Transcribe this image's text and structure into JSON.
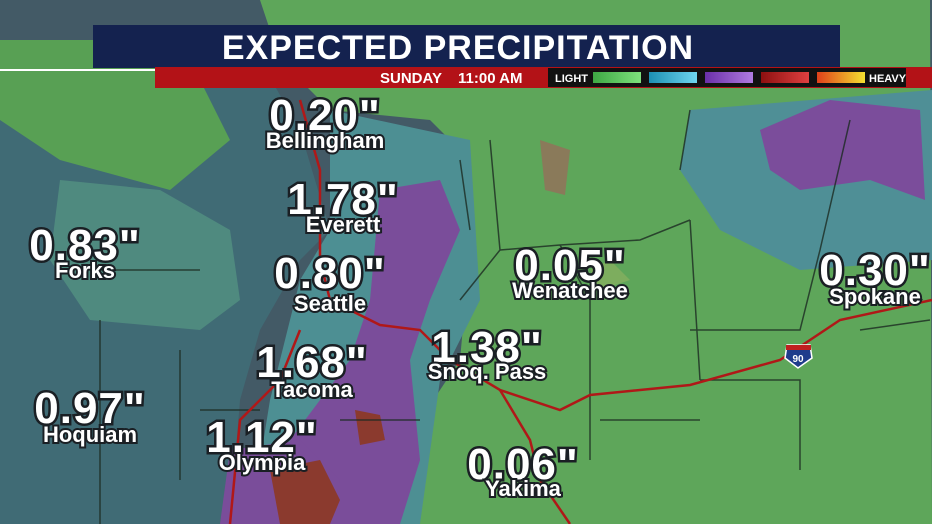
{
  "header": {
    "title": "EXPECTED PRECIPITATION",
    "day": "SUNDAY",
    "time": "11:00 AM"
  },
  "legend": {
    "light": "LIGHT",
    "heavy": "HEAVY"
  },
  "highway": "90",
  "cities": [
    {
      "amount": "0.20\"",
      "name": "Bellingham"
    },
    {
      "amount": "1.78\"",
      "name": "Everett"
    },
    {
      "amount": "0.83\"",
      "name": "Forks"
    },
    {
      "amount": "0.80\"",
      "name": "Seattle"
    },
    {
      "amount": "0.05\"",
      "name": "Wenatchee"
    },
    {
      "amount": "0.30\"",
      "name": "Spokane"
    },
    {
      "amount": "1.38\"",
      "name": "Snoq. Pass"
    },
    {
      "amount": "1.68\"",
      "name": "Tacoma"
    },
    {
      "amount": "0.97\"",
      "name": "Hoquiam"
    },
    {
      "amount": "1.12\"",
      "name": "Olympia"
    },
    {
      "amount": "0.06\"",
      "name": "Yakima"
    }
  ]
}
